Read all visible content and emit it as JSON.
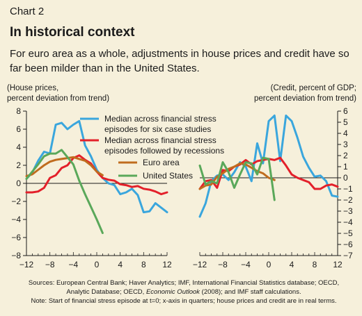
{
  "header": {
    "chart_number": "Chart 2",
    "title": "In historical context",
    "subtitle": "For euro area as a whole, adjustments in house prices and credit have so far been milder than in the United States."
  },
  "axis_titles": {
    "left_line1": "(House prices,",
    "left_line2": "percent deviation from trend)",
    "right_line1": "(Credit, percent of GDP;",
    "right_line2": "percent deviation from trend)"
  },
  "footer": {
    "sources_prefix": "Sources: European Central Bank; Haver Analytics; IMF, International Financial Statistics database; OECD,",
    "sources_line2_a": "Analytic Database; OECD, ",
    "sources_line2_italic": "Economic Outlook",
    "sources_line2_b": " (2008); and IMF staff calculations.",
    "note": "Note: Start of financial stress episode at t=0; x-axis in quarters; house prices and credit are in real terms."
  },
  "colors": {
    "background": "#f6f0db",
    "median_stress": "#3aa6dd",
    "median_recession": "#e3202a",
    "euro_area": "#c06c1e",
    "united_states": "#5aa85a"
  },
  "chart_data": [
    {
      "type": "line",
      "panel": "left",
      "ylabel": "House prices, percent deviation from trend",
      "ylim": [
        -8,
        8
      ],
      "yticks": [
        -8,
        -6,
        -4,
        -2,
        0,
        2,
        4,
        6,
        8
      ],
      "xlim": [
        -12,
        12
      ],
      "xticks": [
        -12,
        -8,
        -4,
        0,
        4,
        8,
        12
      ],
      "grid": false,
      "legend_position": "top-right",
      "series": [
        {
          "name": "Median across financial stress episodes for six case studies",
          "color_key": "median_stress",
          "x": [
            -12,
            -11,
            -10,
            -9,
            -8,
            -7,
            -6,
            -5,
            -4,
            -3,
            -2,
            -1,
            0,
            1,
            2,
            3,
            4,
            5,
            6,
            7,
            8,
            9,
            10,
            11,
            12
          ],
          "values": [
            0.5,
            1.2,
            2.5,
            3.5,
            3.3,
            6.5,
            6.7,
            6.0,
            6.5,
            6.9,
            4.2,
            3.0,
            1.5,
            0.6,
            0.0,
            -0.2,
            -1.2,
            -1.0,
            -0.6,
            -1.3,
            -3.2,
            -3.1,
            -2.2,
            -2.7,
            -3.2
          ]
        },
        {
          "name": "Median across financial stress episodes followed by recessions",
          "color_key": "median_recession",
          "x": [
            -12,
            -11,
            -10,
            -9,
            -8,
            -7,
            -6,
            -5,
            -4,
            -3,
            -2,
            -1,
            0,
            1,
            2,
            3,
            4,
            5,
            6,
            7,
            8,
            9,
            10,
            11,
            12
          ],
          "values": [
            -1.0,
            -1.0,
            -0.9,
            -0.5,
            0.6,
            0.9,
            1.7,
            2.0,
            2.8,
            3.1,
            2.6,
            2.2,
            1.3,
            0.6,
            0.4,
            0.3,
            -0.1,
            -0.2,
            -0.4,
            -0.3,
            -0.6,
            -0.7,
            -0.9,
            -1.2,
            -1.0
          ]
        },
        {
          "name": "Euro area",
          "color_key": "euro_area",
          "x": [
            -12,
            -11,
            -10,
            -9,
            -8,
            -7,
            -6,
            -5,
            -4,
            -3,
            -2,
            -1,
            0,
            1
          ],
          "values": [
            0.8,
            1.0,
            1.5,
            2.0,
            2.4,
            2.6,
            2.7,
            2.8,
            2.9,
            2.7,
            2.5,
            2.0,
            1.3,
            0.9
          ]
        },
        {
          "name": "United States",
          "color_key": "united_states",
          "x": [
            -12,
            -11,
            -10,
            -9,
            -8,
            -7,
            -6,
            -5,
            -4,
            -3,
            -2,
            -1,
            0,
            1
          ],
          "values": [
            0.5,
            1.3,
            2.1,
            3.0,
            3.3,
            3.3,
            3.7,
            2.9,
            2.1,
            0.3,
            -1.2,
            -2.6,
            -4.0,
            -5.5
          ]
        }
      ]
    },
    {
      "type": "line",
      "panel": "right",
      "ylabel": "Credit, percent of GDP; percent deviation from trend",
      "ylim": [
        -7,
        6
      ],
      "yticks": [
        -7,
        -6,
        -5,
        -4,
        -3,
        -2,
        -1,
        0,
        1,
        2,
        3,
        4,
        5,
        6
      ],
      "xlim": [
        -12,
        12
      ],
      "xticks": [
        -12,
        -8,
        -4,
        0,
        4,
        8,
        12
      ],
      "grid": false,
      "series": [
        {
          "name": "Median across financial stress episodes for six case studies",
          "color_key": "median_stress",
          "x": [
            -12,
            -11,
            -10,
            -9,
            -8,
            -7,
            -6,
            -5,
            -4,
            -3,
            -2,
            -1,
            0,
            1,
            2,
            3,
            4,
            5,
            6,
            7,
            8,
            9,
            10,
            11,
            12
          ],
          "values": [
            -3.5,
            -2.3,
            -0.3,
            0.2,
            0.3,
            -0.2,
            0.5,
            1.4,
            1.0,
            -0.3,
            3.1,
            1.3,
            5.1,
            5.6,
            1.5,
            5.6,
            5.1,
            3.6,
            1.9,
            0.9,
            0.1,
            0.2,
            -0.3,
            -1.6,
            -1.7
          ]
        },
        {
          "name": "Median across financial stress episodes followed by recessions",
          "color_key": "median_recession",
          "x": [
            -12,
            -11,
            -10,
            -9,
            -8,
            -7,
            -6,
            -5,
            -4,
            -3,
            -2,
            -1,
            0,
            1,
            2,
            3,
            4,
            5,
            6,
            7,
            8,
            9,
            10,
            11,
            12
          ],
          "values": [
            -1.0,
            -0.3,
            -0.2,
            -0.9,
            0.7,
            0.6,
            1.0,
            1.2,
            1.6,
            1.2,
            1.5,
            1.6,
            1.7,
            1.6,
            1.8,
            1.1,
            0.3,
            0.0,
            -0.2,
            -0.4,
            -1.0,
            -1.0,
            -0.7,
            -0.6,
            -0.8
          ]
        },
        {
          "name": "Euro area",
          "color_key": "euro_area",
          "x": [
            -12,
            -11,
            -10,
            -9,
            -8,
            -7,
            -6,
            -5,
            -4,
            -3,
            -2,
            -1,
            0,
            1
          ],
          "values": [
            -1.0,
            -0.7,
            -0.6,
            0.1,
            0.4,
            0.8,
            1.0,
            1.3,
            1.2,
            0.9,
            0.6,
            0.4,
            0.0,
            -0.2
          ]
        },
        {
          "name": "United States",
          "color_key": "united_states",
          "x": [
            -12,
            -11,
            -10,
            -9,
            -8,
            -7,
            -6,
            -5,
            -4,
            -3,
            -2,
            -1,
            0,
            1
          ],
          "values": [
            1.1,
            -0.6,
            -0.3,
            -0.5,
            1.4,
            0.5,
            -0.9,
            0.3,
            1.4,
            1.3,
            0.3,
            1.8,
            1.7,
            -2.0
          ]
        }
      ]
    }
  ]
}
